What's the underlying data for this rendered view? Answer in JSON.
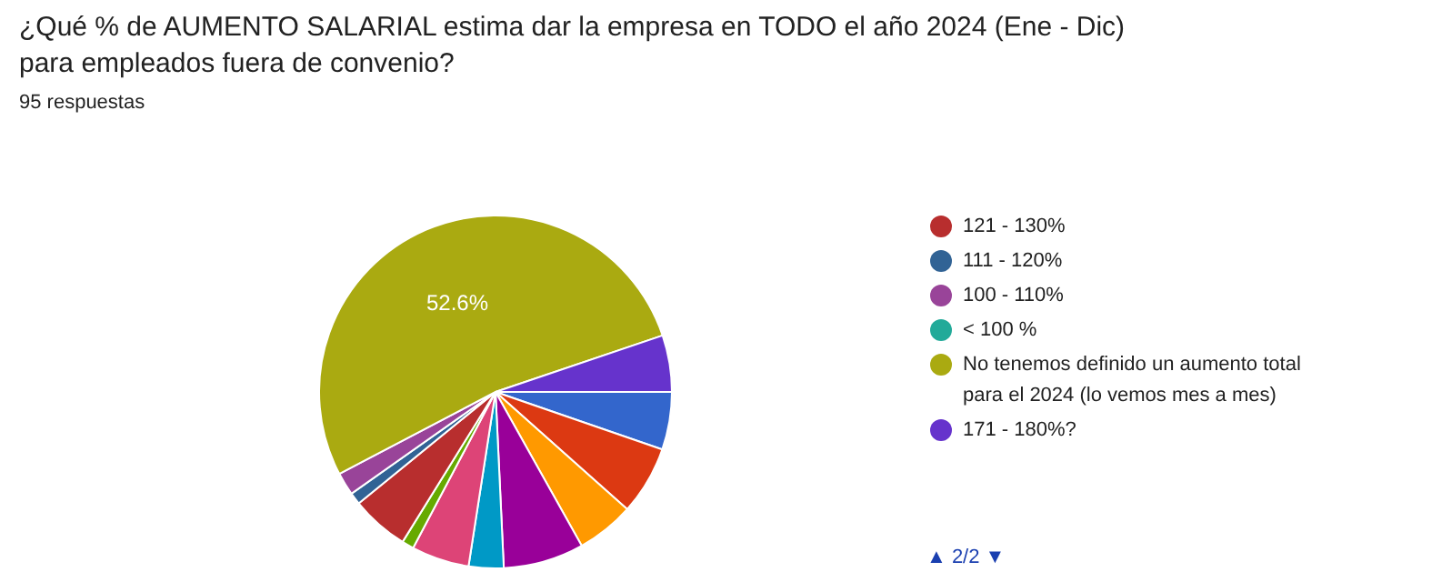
{
  "chart_data": {
    "type": "pie",
    "title": "¿Qué % de AUMENTO SALARIAL estima dar la empresa en TODO el año 2024 (Ene - Dic) para empleados fuera de convenio?",
    "subtitle": "95 respuestas",
    "categories": [
      null,
      null,
      null,
      null,
      null,
      null,
      null,
      "121 - 130%",
      "111 - 120%",
      "100 - 110%",
      "< 100 %",
      "No tenemos definido un aumento total para el 2024 (lo vemos mes a mes)",
      "171 - 180%?"
    ],
    "values": [
      5.3,
      6.3,
      5.3,
      7.4,
      3.2,
      5.3,
      1.1,
      5.3,
      1.1,
      2.1,
      0,
      52.6,
      5.2
    ],
    "colors": [
      "#3366cc",
      "#dc3912",
      "#ff9900",
      "#990099",
      "#0099c6",
      "#dd4477",
      "#66aa00",
      "#b82e2e",
      "#316395",
      "#994499",
      "#22aa99",
      "#aaaa11",
      "#6633cc"
    ],
    "value_labels": [
      null,
      null,
      null,
      null,
      null,
      null,
      null,
      null,
      null,
      null,
      null,
      "52.6%",
      null
    ],
    "legend": "right",
    "annotations": [
      "▲ 2/2 ▼"
    ]
  }
}
